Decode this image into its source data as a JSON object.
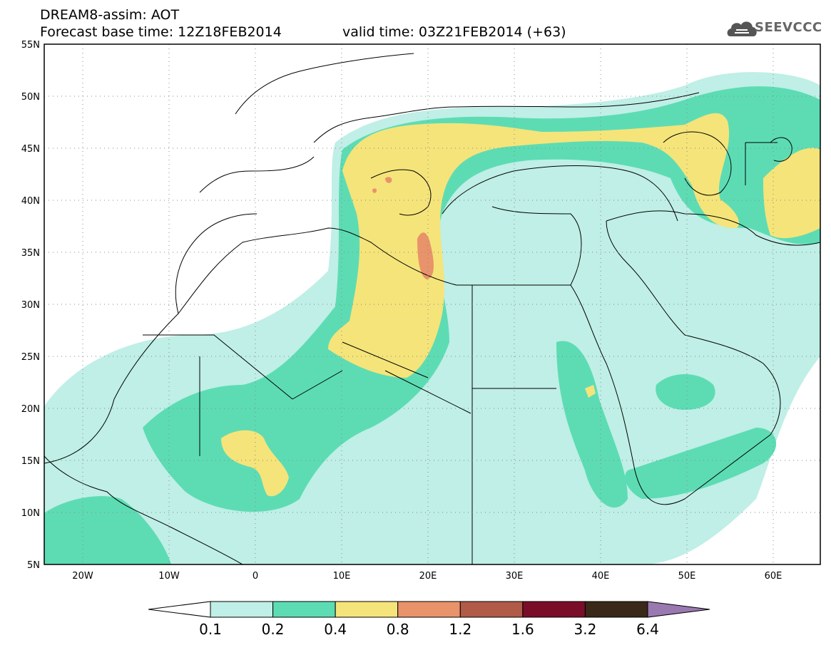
{
  "header": {
    "title": "DREAM8-assim: AOT",
    "base_time": "Forecast base time: 12Z18FEB2014",
    "valid_time": "valid time: 03Z21FEB2014 (+63)"
  },
  "logo": {
    "text": "SEEVCCC",
    "icon": "cloud-icon"
  },
  "map": {
    "lon_range": [
      -25,
      65
    ],
    "lat_range": [
      5,
      55
    ],
    "lon_ticks": [
      "20W",
      "10W",
      "0",
      "10E",
      "20E",
      "30E",
      "40E",
      "50E",
      "60E"
    ],
    "lat_ticks": [
      "55N",
      "50N",
      "45N",
      "40N",
      "35N",
      "30N",
      "25N",
      "20N",
      "15N",
      "10N",
      "5N"
    ],
    "grid": "dotted"
  },
  "colorbar": {
    "levels": [
      "0.1",
      "0.2",
      "0.4",
      "0.8",
      "1.2",
      "1.6",
      "3.2",
      "6.4"
    ],
    "colors": [
      "#ffffff",
      "#bfefe6",
      "#5ddcb4",
      "#f5e47a",
      "#e8936a",
      "#b05a48",
      "#7a0e28",
      "#3a2818",
      "#9a78b0"
    ]
  }
}
